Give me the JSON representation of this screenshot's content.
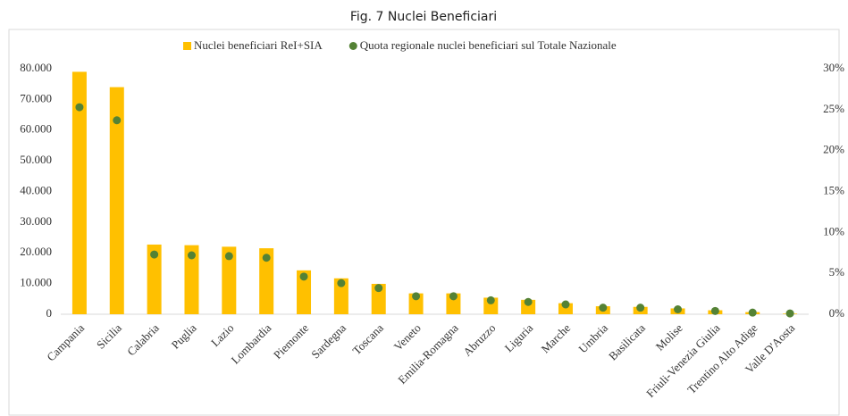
{
  "chart_data": {
    "type": "bar",
    "title": "Fig. 7 Nuclei Beneficiari",
    "categories": [
      "Campania",
      "Sicilia",
      "Calabria",
      "Puglia",
      "Lazio",
      "Lombardia",
      "Piemonte",
      "Sardegna",
      "Toscana",
      "Veneto",
      "Emilia-Romagna",
      "Abruzzo",
      "Liguria",
      "Marche",
      "Umbria",
      "Basilicata",
      "Molise",
      "Friuli-Venezia Giulia",
      "Trentino Alto Adige",
      "Valle D'Aosta"
    ],
    "series": [
      {
        "name": "Nuclei beneficiari ReI+SIA",
        "color": "#ffc000",
        "type": "bar",
        "values": [
          79000,
          74000,
          22700,
          22500,
          22000,
          21500,
          14300,
          11700,
          9900,
          6800,
          6800,
          5400,
          4700,
          3600,
          2600,
          2400,
          1900,
          1300,
          700,
          200
        ]
      },
      {
        "name": "Quota regionale nuclei beneficiari sul Totale Nazionale",
        "color": "#548235",
        "type": "scatter",
        "axis": "y2",
        "values": [
          25.3,
          23.7,
          7.3,
          7.2,
          7.1,
          6.9,
          4.6,
          3.8,
          3.2,
          2.2,
          2.2,
          1.7,
          1.5,
          1.2,
          0.8,
          0.8,
          0.6,
          0.4,
          0.2,
          0.1
        ]
      }
    ],
    "ylim": [
      0,
      80000
    ],
    "yticks": [
      0,
      {
        "value": 10000,
        "label": "10.000"
      },
      {
        "value": 20000,
        "label": "20.000"
      },
      {
        "value": 30000,
        "label": "30.000"
      },
      {
        "value": 40000,
        "label": "40.000"
      },
      {
        "value": 50000,
        "label": "50.000"
      },
      {
        "value": 60000,
        "label": "60.000"
      },
      {
        "value": 70000,
        "label": "70.000"
      },
      {
        "value": 80000,
        "label": "80.000"
      }
    ],
    "y2lim": [
      0,
      30
    ],
    "y2ticks": [
      {
        "value": 0,
        "label": "0%"
      },
      {
        "value": 5,
        "label": "5%"
      },
      {
        "value": 10,
        "label": "10%"
      },
      {
        "value": 15,
        "label": "15%"
      },
      {
        "value": 20,
        "label": "20%"
      },
      {
        "value": 25,
        "label": "25%"
      },
      {
        "value": 30,
        "label": "30%"
      }
    ],
    "grid": false,
    "legend": "top"
  }
}
